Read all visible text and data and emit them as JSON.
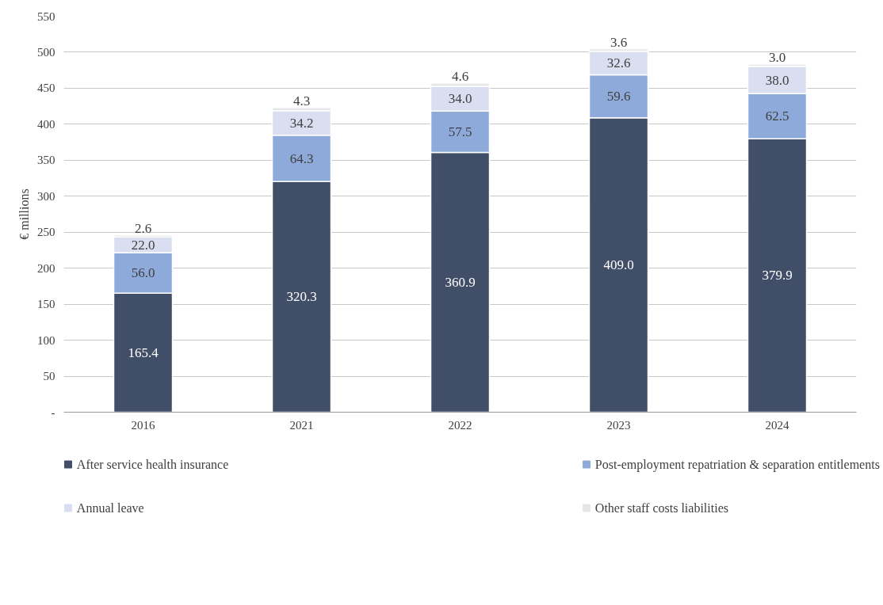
{
  "chart_data": {
    "type": "bar",
    "stacked": true,
    "ylabel": "€ millions",
    "categories": [
      "2016",
      "2021",
      "2022",
      "2023",
      "2024"
    ],
    "series": [
      {
        "name": "After service health insurance",
        "color": "#404e67",
        "values": [
          165.4,
          320.3,
          360.9,
          409.0,
          379.9
        ],
        "value_labels": [
          "165.4",
          "320.3",
          "360.9",
          "409.0",
          "379.9"
        ]
      },
      {
        "name": "Post-employment repatriation & separation entitlements",
        "color": "#8eaadb",
        "values": [
          56.0,
          64.3,
          57.5,
          59.6,
          62.5
        ],
        "value_labels": [
          "56.0",
          "64.3",
          "57.5",
          "59.6",
          "62.5"
        ]
      },
      {
        "name": "Annual leave",
        "color": "#d9dff0",
        "values": [
          22.0,
          34.2,
          34.0,
          32.6,
          38.0
        ],
        "value_labels": [
          "22.0",
          "34.2",
          "34.0",
          "32.6",
          "38.0"
        ]
      },
      {
        "name": "Other staff costs liabilities",
        "color": "#e6e6e6",
        "values": [
          2.6,
          4.3,
          4.6,
          3.6,
          3.0
        ],
        "value_labels": [
          "2.6",
          "4.3",
          "4.6",
          "3.6",
          "3.0"
        ]
      }
    ],
    "ylim": [
      0,
      550
    ],
    "yticks": [
      {
        "value": 0,
        "label": "-"
      },
      50,
      100,
      150,
      200,
      250,
      300,
      350,
      400,
      450,
      500,
      550
    ],
    "grid": "y",
    "legend": "bottom"
  }
}
